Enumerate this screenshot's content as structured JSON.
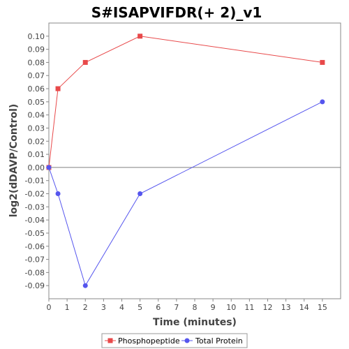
{
  "chart_data": {
    "type": "line",
    "title": "S#ISAPVIFDR(+ 2)_v1",
    "xlabel": "Time (minutes)",
    "ylabel": "log2(dDAVP/Control)",
    "xlim": [
      0,
      16
    ],
    "ylim": [
      -0.1,
      0.11
    ],
    "x_ticks": [
      0,
      1,
      2,
      3,
      4,
      5,
      6,
      7,
      8,
      9,
      10,
      11,
      12,
      13,
      14,
      15
    ],
    "y_ticks": [
      0.1,
      0.09,
      0.08,
      0.07,
      0.06,
      0.05,
      0.04,
      0.03,
      0.02,
      0.01,
      0.0,
      -0.01,
      -0.02,
      -0.03,
      -0.04,
      -0.05,
      -0.06,
      -0.07,
      -0.08,
      -0.09
    ],
    "y_tick_labels": [
      "0.10",
      "0.09",
      "0.08",
      "0.07",
      "0.06",
      "0.05",
      "0.04",
      "0.03",
      "0.02",
      "0.01",
      "0.00",
      "-0.01",
      "-0.02",
      "-0.03",
      "-0.04",
      "-0.05",
      "-0.06",
      "-0.07",
      "-0.08",
      "-0.09"
    ],
    "zero_line": 0,
    "grid": false,
    "legend_position": "bottom",
    "series": [
      {
        "name": "Phosphopeptide",
        "color": "#e8494a",
        "marker": "square",
        "x": [
          0,
          0.5,
          2,
          5,
          15
        ],
        "y": [
          0.0,
          0.06,
          0.08,
          0.1,
          0.08
        ]
      },
      {
        "name": "Total Protein",
        "color": "#5555ee",
        "marker": "circle",
        "x": [
          0,
          0.5,
          2,
          5,
          15
        ],
        "y": [
          0.0,
          -0.02,
          -0.09,
          -0.02,
          0.05
        ]
      }
    ]
  }
}
